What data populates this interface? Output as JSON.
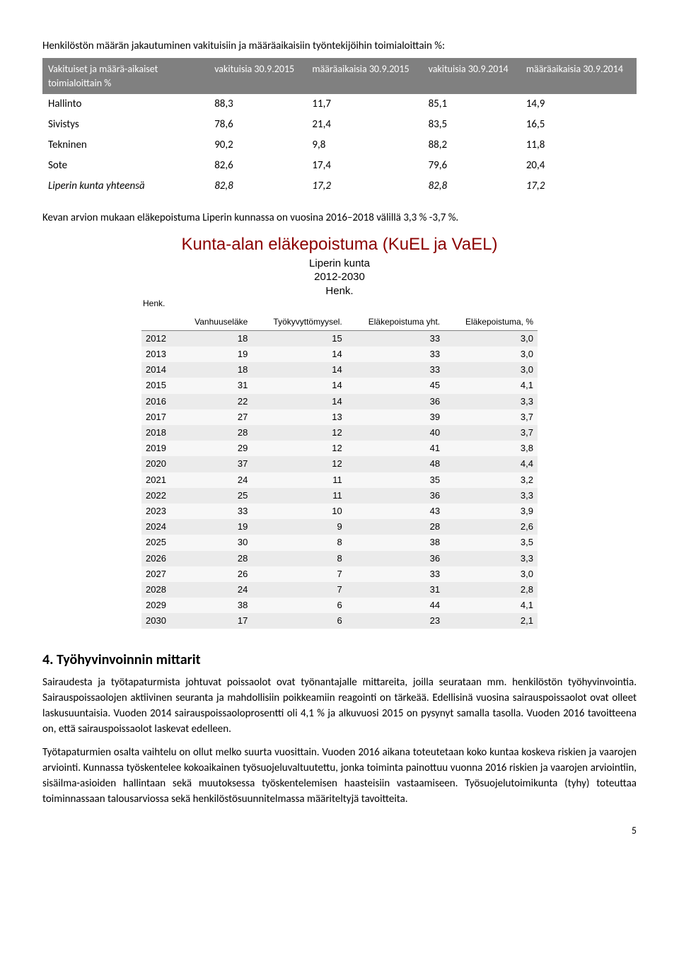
{
  "intro": "Henkilöstön määrän jakautuminen vakituisiin ja määräaikaisiin työntekijöihin toimialoittain %:",
  "table1": {
    "headers": [
      "Vakituiset ja määrä-aikaiset toimialoittain %",
      "vakituisia 30.9.2015",
      "määräaikaisia 30.9.2015",
      "vakituisia 30.9.2014",
      "määräaikaisia 30.9.2014"
    ],
    "rows": [
      {
        "label": "Hallinto",
        "v": [
          "88,3",
          "11,7",
          "85,1",
          "14,9"
        ],
        "italic": false
      },
      {
        "label": "Sivistys",
        "v": [
          "78,6",
          "21,4",
          "83,5",
          "16,5"
        ],
        "italic": false
      },
      {
        "label": "Tekninen",
        "v": [
          "90,2",
          "9,8",
          "88,2",
          "11,8"
        ],
        "italic": false
      },
      {
        "label": "Sote",
        "v": [
          "82,6",
          "17,4",
          "79,6",
          "20,4"
        ],
        "italic": false
      },
      {
        "label": "Liperin kunta yhteensä",
        "v": [
          "82,8",
          "17,2",
          "82,8",
          "17,2"
        ],
        "italic": true
      }
    ]
  },
  "mid_para": "Kevan arvion mukaan eläkepoistuma Liperin kunnassa on vuosina 2016–2018 välillä 3,3 % -3,7 %.",
  "chart": {
    "title": "Kunta-alan eläkepoistuma (KuEL ja VaEL)",
    "sub1": "Liperin kunta",
    "sub2": "2012-2030",
    "sub3": "Henk.",
    "henk_label": "Henk.",
    "columns": [
      "",
      "Vanhuuseläke",
      "Työkyvyttömyysel.",
      "Eläkepoistuma yht.",
      "Eläkepoistuma, %"
    ],
    "rows": [
      [
        "2012",
        "18",
        "15",
        "33",
        "3,0"
      ],
      [
        "2013",
        "19",
        "14",
        "33",
        "3,0"
      ],
      [
        "2014",
        "18",
        "14",
        "33",
        "3,0"
      ],
      [
        "2015",
        "31",
        "14",
        "45",
        "4,1"
      ],
      [
        "2016",
        "22",
        "14",
        "36",
        "3,3"
      ],
      [
        "2017",
        "27",
        "13",
        "39",
        "3,7"
      ],
      [
        "2018",
        "28",
        "12",
        "40",
        "3,7"
      ],
      [
        "2019",
        "29",
        "12",
        "41",
        "3,8"
      ],
      [
        "2020",
        "37",
        "12",
        "48",
        "4,4"
      ],
      [
        "2021",
        "24",
        "11",
        "35",
        "3,2"
      ],
      [
        "2022",
        "25",
        "11",
        "36",
        "3,3"
      ],
      [
        "2023",
        "33",
        "10",
        "43",
        "3,9"
      ],
      [
        "2024",
        "19",
        "9",
        "28",
        "2,6"
      ],
      [
        "2025",
        "30",
        "8",
        "38",
        "3,5"
      ],
      [
        "2026",
        "28",
        "8",
        "36",
        "3,3"
      ],
      [
        "2027",
        "26",
        "7",
        "33",
        "3,0"
      ],
      [
        "2028",
        "24",
        "7",
        "31",
        "2,8"
      ],
      [
        "2029",
        "38",
        "6",
        "44",
        "4,1"
      ],
      [
        "2030",
        "17",
        "6",
        "23",
        "2,1"
      ]
    ]
  },
  "section": {
    "heading": "4.    Työhyvinvoinnin mittarit",
    "p1": "Sairaudesta ja työtapaturmista johtuvat poissaolot ovat työnantajalle mittareita, joilla seurataan mm. henkilöstön työhyvinvointia. Sairauspoissaolojen aktiivinen seuranta ja mahdollisiin poikkeamiin reagointi on tärkeää. Edellisinä vuosina sairauspoissaolot ovat olleet laskusuuntaisia. Vuoden 2014 sairauspoissaoloprosentti oli 4,1 % ja alkuvuosi 2015 on pysynyt samalla tasolla. Vuoden 2016 tavoitteena on, että sairauspoissaolot laskevat edelleen.",
    "p2": "Työtapaturmien osalta vaihtelu on ollut melko suurta vuosittain. Vuoden 2016 aikana toteutetaan koko kuntaa koskeva riskien ja vaarojen arviointi. Kunnassa työskentelee kokoaikainen työsuojeluvaltuutettu, jonka toiminta painottuu vuonna 2016 riskien ja vaarojen arviointiin, sisäilma-asioiden hallintaan sekä muutoksessa työskentelemisen haasteisiin vastaamiseen. Työsuojelutoimikunta (tyhy) toteuttaa toiminnassaan talousarviossa sekä henkilöstösuunnitelmassa määriteltyjä tavoitteita."
  },
  "page_number": "5"
}
